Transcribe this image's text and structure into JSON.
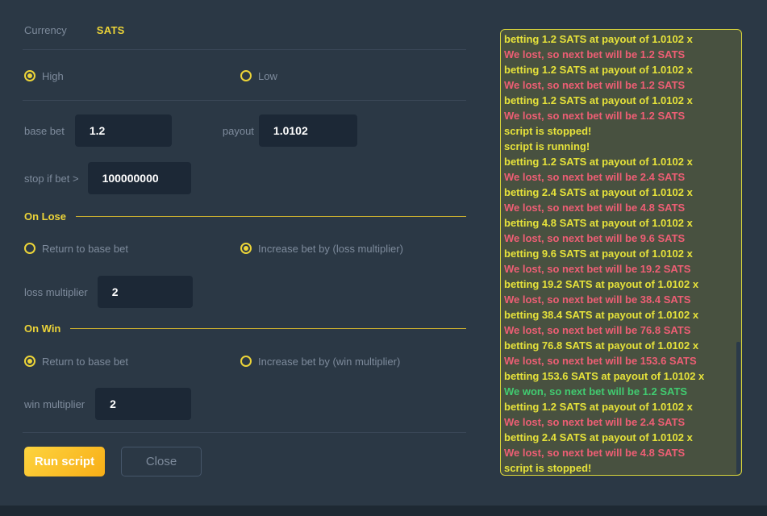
{
  "colors": {
    "page_bg": "#2b3845",
    "strip_bg": "#1e2933",
    "accent": "#ecd438",
    "label": "#7e8b9c",
    "divider": "#3a4757",
    "section_line": "#c9ae2f",
    "input_bg": "#1c2836",
    "run_gradient_start": "#fdd43f",
    "run_gradient_end": "#f8ae17",
    "close_border": "#46566a",
    "log_bg": "#485140",
    "log_border": "#d9d53c",
    "log_bet": "#e6e23a",
    "log_lose": "#ee5e74",
    "log_win": "#41cb70",
    "scroll_thumb": "#2b3a49"
  },
  "currency": {
    "label": "Currency",
    "value": "SATS"
  },
  "direction": {
    "options": [
      "High",
      "Low"
    ],
    "selected": 0
  },
  "fields": {
    "base_bet": {
      "label": "base bet",
      "value": "1.2"
    },
    "payout": {
      "label": "payout",
      "value": "1.0102"
    },
    "stop_if_bet": {
      "label": "stop if bet >",
      "value": "100000000"
    },
    "loss_multiplier": {
      "label": "loss multiplier",
      "value": "2"
    },
    "win_multiplier": {
      "label": "win multiplier",
      "value": "2"
    }
  },
  "on_lose": {
    "title": "On Lose",
    "options": [
      "Return to base bet",
      "Increase bet by (loss multiplier)"
    ],
    "selected": 1
  },
  "on_win": {
    "title": "On Win",
    "options": [
      "Return to base bet",
      "Increase bet by (win multiplier)"
    ],
    "selected": 0
  },
  "buttons": {
    "run": "Run script",
    "close": "Close"
  },
  "log": {
    "lines": [
      {
        "type": "bet",
        "text": "betting 1.2 SATS at payout of 1.0102 x"
      },
      {
        "type": "lose",
        "text": "We lost, so next bet will be 1.2 SATS"
      },
      {
        "type": "bet",
        "text": "betting 1.2 SATS at payout of 1.0102 x"
      },
      {
        "type": "lose",
        "text": "We lost, so next bet will be 1.2 SATS"
      },
      {
        "type": "bet",
        "text": "betting 1.2 SATS at payout of 1.0102 x"
      },
      {
        "type": "lose",
        "text": "We lost, so next bet will be 1.2 SATS"
      },
      {
        "type": "status",
        "text": "script is stopped!"
      },
      {
        "type": "status",
        "text": "script is running!"
      },
      {
        "type": "bet",
        "text": "betting 1.2 SATS at payout of 1.0102 x"
      },
      {
        "type": "lose",
        "text": "We lost, so next bet will be 2.4 SATS"
      },
      {
        "type": "bet",
        "text": "betting 2.4 SATS at payout of 1.0102 x"
      },
      {
        "type": "lose",
        "text": "We lost, so next bet will be 4.8 SATS"
      },
      {
        "type": "bet",
        "text": "betting 4.8 SATS at payout of 1.0102 x"
      },
      {
        "type": "lose",
        "text": "We lost, so next bet will be 9.6 SATS"
      },
      {
        "type": "bet",
        "text": "betting 9.6 SATS at payout of 1.0102 x"
      },
      {
        "type": "lose",
        "text": "We lost, so next bet will be 19.2 SATS"
      },
      {
        "type": "bet",
        "text": "betting 19.2 SATS at payout of 1.0102 x"
      },
      {
        "type": "lose",
        "text": "We lost, so next bet will be 38.4 SATS"
      },
      {
        "type": "bet",
        "text": "betting 38.4 SATS at payout of 1.0102 x"
      },
      {
        "type": "lose",
        "text": "We lost, so next bet will be 76.8 SATS"
      },
      {
        "type": "bet",
        "text": "betting 76.8 SATS at payout of 1.0102 x"
      },
      {
        "type": "lose",
        "text": "We lost, so next bet will be 153.6 SATS"
      },
      {
        "type": "bet",
        "text": "betting 153.6 SATS at payout of 1.0102 x"
      },
      {
        "type": "win",
        "text": "We won, so next bet will be 1.2 SATS"
      },
      {
        "type": "bet",
        "text": "betting 1.2 SATS at payout of 1.0102 x"
      },
      {
        "type": "lose",
        "text": "We lost, so next bet will be 2.4 SATS"
      },
      {
        "type": "bet",
        "text": "betting 2.4 SATS at payout of 1.0102 x"
      },
      {
        "type": "lose",
        "text": "We lost, so next bet will be 4.8 SATS"
      },
      {
        "type": "status",
        "text": "script is stopped!"
      }
    ]
  }
}
